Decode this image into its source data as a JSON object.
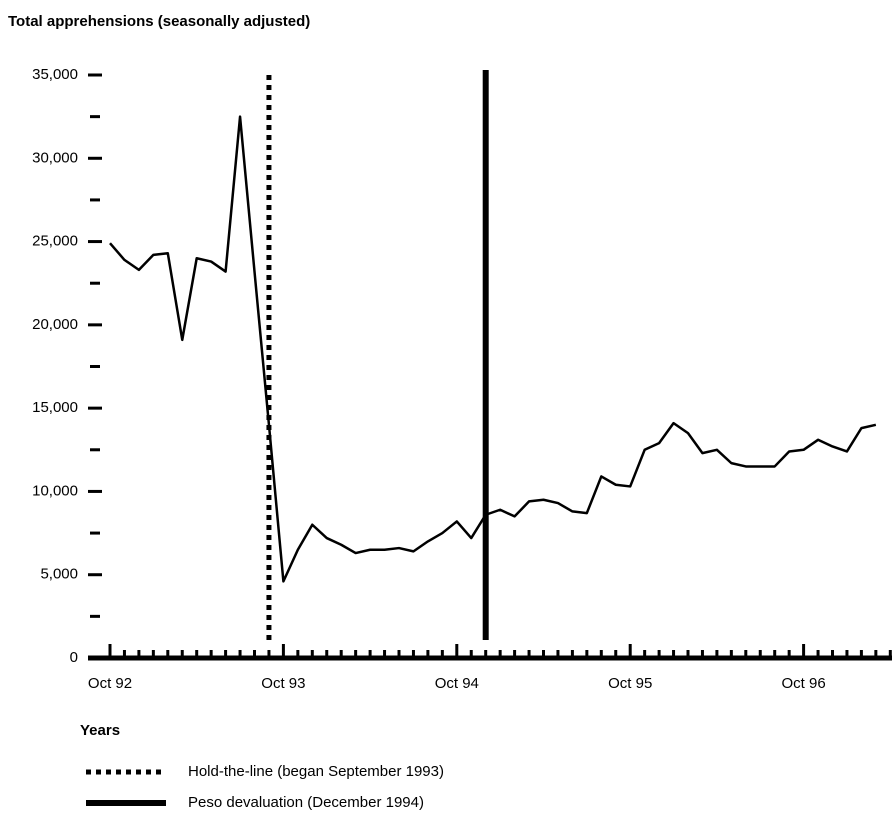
{
  "chart_data": {
    "type": "line",
    "title": "Total apprehensions (seasonally adjusted)",
    "x_label": "Years",
    "categories": [
      "Oct 92",
      null,
      null,
      null,
      null,
      null,
      null,
      null,
      null,
      null,
      null,
      null,
      "Oct 93",
      null,
      null,
      null,
      null,
      null,
      null,
      null,
      null,
      null,
      null,
      null,
      "Oct 94",
      null,
      null,
      null,
      null,
      null,
      null,
      null,
      null,
      null,
      null,
      null,
      "Oct 95",
      null,
      null,
      null,
      null,
      null,
      null,
      null,
      null,
      null,
      null,
      null,
      "Oct 96",
      null,
      null,
      null,
      null,
      null
    ],
    "series": [
      {
        "color": "#000000",
        "values": [
          24900,
          23900,
          23300,
          24200,
          24300,
          19100,
          24000,
          23800,
          23200,
          32500,
          23200,
          14000,
          4600,
          6500,
          8000,
          7200,
          6800,
          6300,
          6500,
          6500,
          6600,
          6400,
          7000,
          7500,
          8200,
          7200,
          8600,
          8900,
          8500,
          9400,
          9500,
          9300,
          8800,
          8700,
          10900,
          10400,
          10300,
          12500,
          12900,
          14100,
          13500,
          12300,
          12500,
          11700,
          11500,
          11500,
          11500,
          12400,
          12500,
          13100,
          12700,
          12400,
          13800,
          14000
        ]
      }
    ],
    "ylim": [
      0,
      35000
    ],
    "yticks": [
      0,
      {
        "value": 5000,
        "label": "5,000"
      },
      {
        "value": 10000,
        "label": "10,000"
      },
      {
        "value": 15000,
        "label": "15,000"
      },
      {
        "value": 20000,
        "label": "20,000"
      },
      {
        "value": 25000,
        "label": "25,000"
      },
      {
        "value": 30000,
        "label": "30,000"
      },
      {
        "value": 35000,
        "label": "35,000"
      }
    ],
    "yminor_ticks": [
      2500,
      7500,
      12500,
      17500,
      22500,
      27500,
      32500
    ],
    "annotations": [
      {
        "label": "Hold-the-line (began September 1993)",
        "x_index": 11,
        "style": "dotted"
      },
      {
        "label": "Peso devaluation (December 1994)",
        "x_index": 26,
        "style": "solid"
      }
    ]
  }
}
